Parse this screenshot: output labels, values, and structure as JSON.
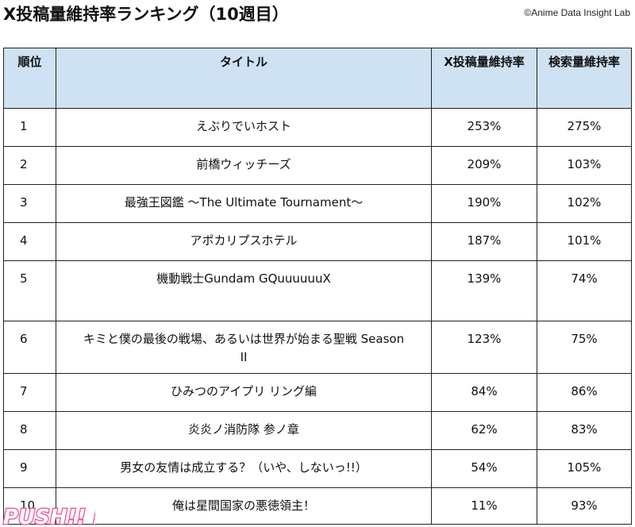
{
  "title": "X投稿量維持率ランキング（10週目）",
  "credit": "©Anime Data Insight Lab",
  "logo_text": "PUSH!! PLUS",
  "colors": {
    "header_bg": "#cfe2f3",
    "border": "#222222",
    "logo_pink": "#ee4a92"
  },
  "table": {
    "headers": [
      "順位",
      "タイトル",
      "X投稿量維持率",
      "検索量維持率"
    ],
    "rows": [
      {
        "rank": "1",
        "title": "えぶりでいホスト",
        "x_rate": "253%",
        "search_rate": "275%"
      },
      {
        "rank": "2",
        "title": "前橋ウィッチーズ",
        "x_rate": "209%",
        "search_rate": "103%"
      },
      {
        "rank": "3",
        "title": "最強王図鑑 〜The Ultimate Tournament〜",
        "x_rate": "190%",
        "search_rate": "102%"
      },
      {
        "rank": "4",
        "title": "アポカリプスホテル",
        "x_rate": "187%",
        "search_rate": "101%"
      },
      {
        "rank": "5",
        "title": "機動戦士Gundam GQuuuuuuX",
        "x_rate": "139%",
        "search_rate": "74%"
      },
      {
        "rank": "6",
        "title": "キミと僕の最後の戦場、あるいは世界が始まる聖戦 Season II",
        "x_rate": "123%",
        "search_rate": "75%"
      },
      {
        "rank": "7",
        "title": "ひみつのアイプリ リング編",
        "x_rate": "84%",
        "search_rate": "86%"
      },
      {
        "rank": "8",
        "title": "炎炎ノ消防隊 参ノ章",
        "x_rate": "62%",
        "search_rate": "83%"
      },
      {
        "rank": "9",
        "title": "男女の友情は成立する？（いや、しないっ!!）",
        "x_rate": "54%",
        "search_rate": "105%"
      },
      {
        "rank": "10",
        "title": "俺は星間国家の悪徳領主！",
        "x_rate": "11%",
        "search_rate": "93%"
      }
    ]
  }
}
